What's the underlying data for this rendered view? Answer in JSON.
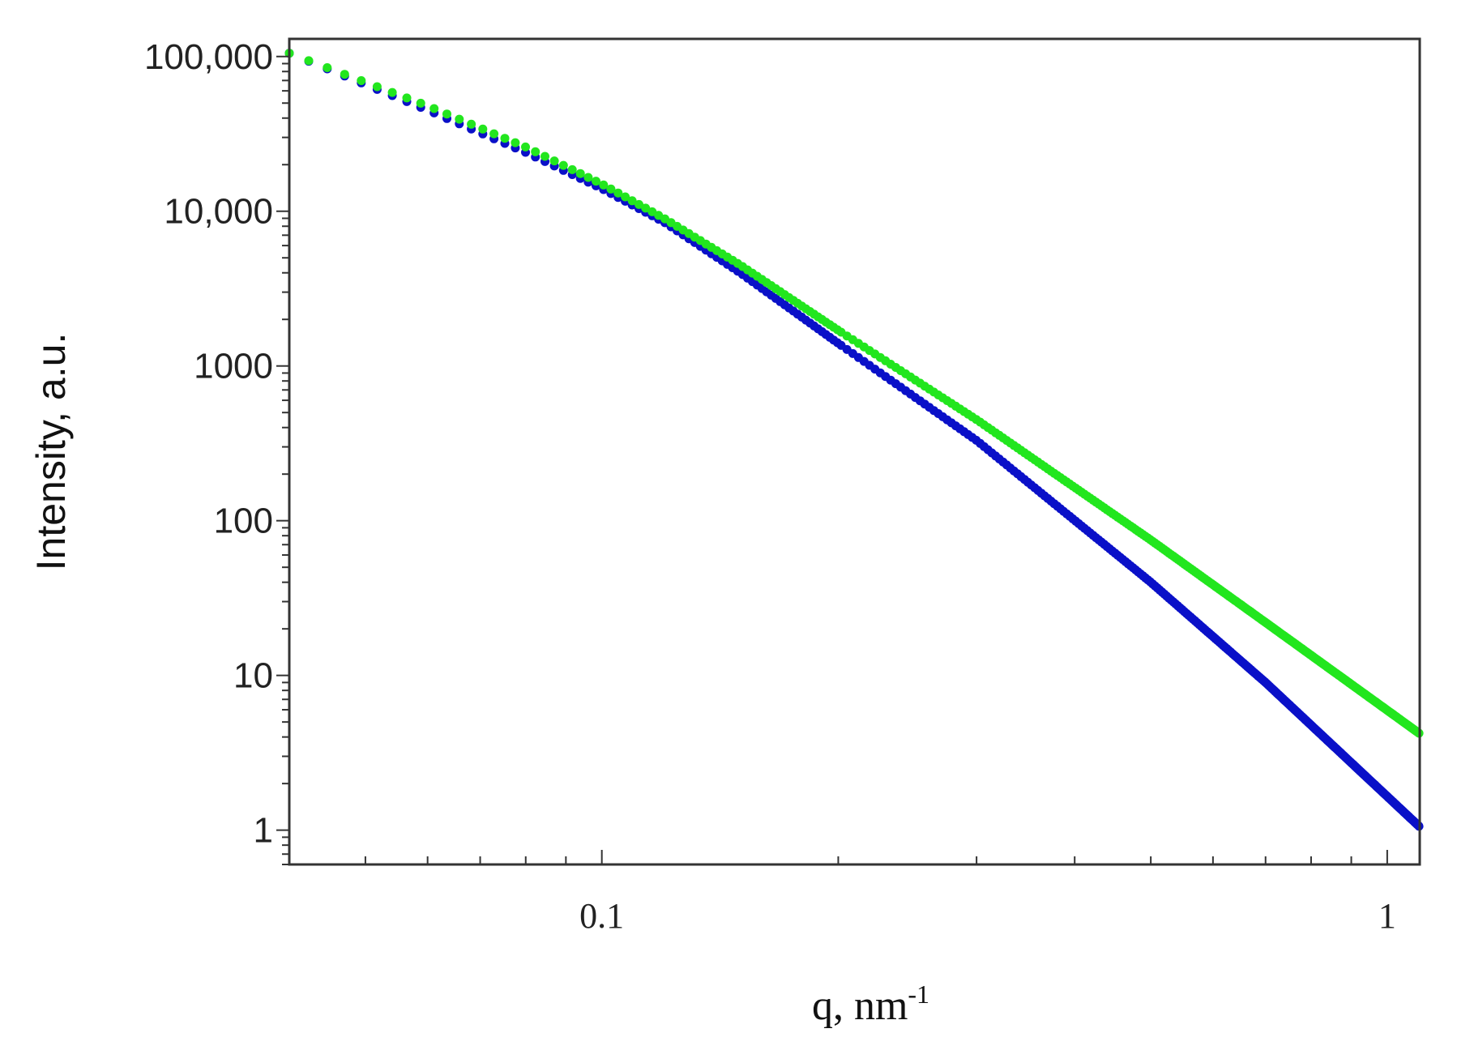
{
  "chart_data": {
    "type": "scatter",
    "title": "",
    "xlabel": "q, nm",
    "xlabel_superscript": "-1",
    "ylabel": "Intensity, a.u.",
    "x_scale": "log",
    "y_scale": "log",
    "xlim": [
      0.04,
      1.1
    ],
    "ylim": [
      0.6,
      130000
    ],
    "x_ticks": [
      {
        "value": 0.1,
        "label": "0.1"
      },
      {
        "value": 1,
        "label": "1"
      }
    ],
    "y_ticks": [
      {
        "value": 1,
        "label": "1"
      },
      {
        "value": 10,
        "label": "10"
      },
      {
        "value": 100,
        "label": "100"
      },
      {
        "value": 1000,
        "label": "1000"
      },
      {
        "value": 10000,
        "label": "10,000"
      },
      {
        "value": 100000,
        "label": "100,000"
      }
    ],
    "grid": false,
    "legend": "none",
    "series": [
      {
        "color": "#0a10c8",
        "points": [
          [
            0.04,
            105000
          ],
          [
            0.06,
            45000
          ],
          [
            0.08,
            24000
          ],
          [
            0.1,
            14000
          ],
          [
            0.12,
            8500
          ],
          [
            0.15,
            4000
          ],
          [
            0.2,
            1400
          ],
          [
            0.3,
            330
          ],
          [
            0.5,
            40
          ],
          [
            0.7,
            9
          ],
          [
            1.1,
            1.05
          ]
        ]
      },
      {
        "color": "#22e61e",
        "points": [
          [
            0.04,
            105000
          ],
          [
            0.06,
            48000
          ],
          [
            0.08,
            26000
          ],
          [
            0.1,
            15000
          ],
          [
            0.12,
            9000
          ],
          [
            0.15,
            4500
          ],
          [
            0.2,
            1700
          ],
          [
            0.3,
            450
          ],
          [
            0.5,
            75
          ],
          [
            0.7,
            22
          ],
          [
            1.1,
            4.2
          ]
        ]
      }
    ]
  }
}
